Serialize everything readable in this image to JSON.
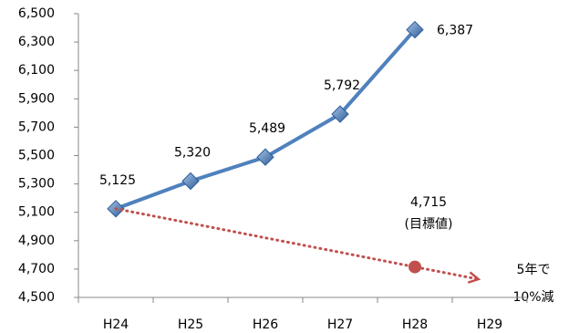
{
  "chart_data": {
    "type": "line",
    "categories": [
      "H24",
      "H25",
      "H26",
      "H27",
      "H28",
      "H29"
    ],
    "series": [
      {
        "color": "#4f81bd",
        "values": [
          5125,
          5320,
          5489,
          5792,
          6387,
          null
        ],
        "value_labels": [
          "5,125",
          "5,320",
          "5,489",
          "5,792",
          "6,387",
          null
        ],
        "marker": "diamond"
      },
      {
        "color": "#c0504d",
        "values": [
          5125,
          5023,
          4920,
          4818,
          4715,
          4613
        ],
        "style": "dotted",
        "arrow": true
      }
    ],
    "target": {
      "value": 4715,
      "label": "4,715",
      "note": "(目標値)"
    },
    "annotation": [
      "5年で",
      "10%減"
    ],
    "ylim": [
      4500,
      6500
    ],
    "yticks": [
      {
        "value": 4500,
        "label": "4,500"
      },
      {
        "value": 4700,
        "label": "4,700"
      },
      {
        "value": 4900,
        "label": "4,900"
      },
      {
        "value": 5100,
        "label": "5,100"
      },
      {
        "value": 5300,
        "label": "5,300"
      },
      {
        "value": 5500,
        "label": "5,500"
      },
      {
        "value": 5700,
        "label": "5,700"
      },
      {
        "value": 5900,
        "label": "5,900"
      },
      {
        "value": 6100,
        "label": "6,100"
      },
      {
        "value": 6300,
        "label": "6,300"
      },
      {
        "value": 6500,
        "label": "6,500"
      }
    ],
    "grid": false
  }
}
